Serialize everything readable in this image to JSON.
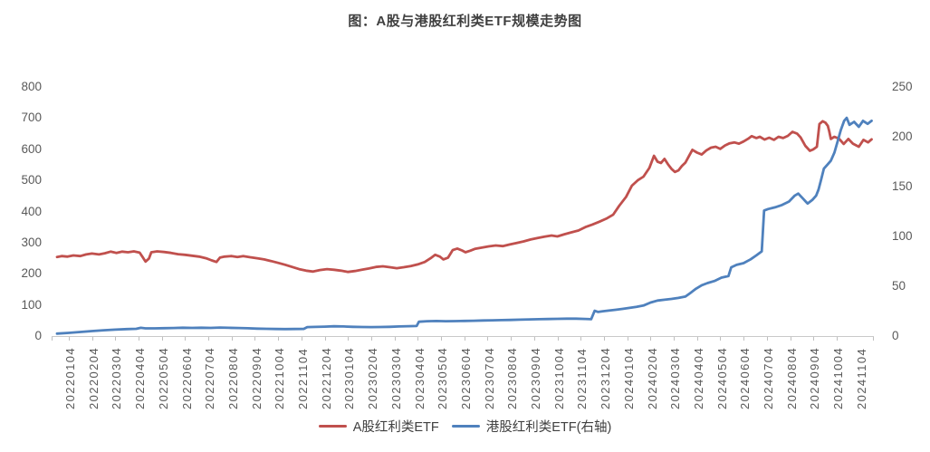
{
  "chart_data": {
    "type": "line",
    "title": "图：A股与港股红利类ETF规模走势图",
    "left_axis": {
      "min": 0,
      "max": 800,
      "step": 100,
      "tick_labels": [
        "0",
        "100",
        "200",
        "300",
        "400",
        "500",
        "600",
        "700",
        "800"
      ]
    },
    "right_axis": {
      "min": 0,
      "max": 250,
      "step": 50,
      "tick_labels": [
        "0",
        "50",
        "100",
        "150",
        "200",
        "250"
      ]
    },
    "x_tick_labels": [
      "20220104",
      "20220204",
      "20220304",
      "20220404",
      "20220504",
      "20220604",
      "20220704",
      "20220804",
      "20220904",
      "20221004",
      "20221104",
      "20221204",
      "20230104",
      "20230204",
      "20230304",
      "20230404",
      "20230504",
      "20230604",
      "20230704",
      "20230804",
      "20230904",
      "20231004",
      "20231104",
      "20231204",
      "20240104",
      "20240204",
      "20240304",
      "20240404",
      "20240504",
      "20240604",
      "20240704",
      "20240804",
      "20240904",
      "20241004",
      "20241104"
    ],
    "x_unit": "months since 2022-01-04",
    "x_range": [
      0,
      35
    ],
    "grid": "off",
    "legend_position": "bottom-center",
    "series": [
      {
        "name": "A股红利类ETF",
        "axis": "left",
        "color": "#c0504d",
        "points": [
          [
            0,
            254
          ],
          [
            0.2,
            257
          ],
          [
            0.45,
            255
          ],
          [
            0.7,
            259
          ],
          [
            1,
            257
          ],
          [
            1.25,
            262
          ],
          [
            1.5,
            265
          ],
          [
            1.8,
            262
          ],
          [
            2.05,
            266
          ],
          [
            2.3,
            271
          ],
          [
            2.55,
            267
          ],
          [
            2.8,
            271
          ],
          [
            3.05,
            269
          ],
          [
            3.3,
            272
          ],
          [
            3.55,
            268
          ],
          [
            3.7,
            251
          ],
          [
            3.8,
            239
          ],
          [
            3.95,
            249
          ],
          [
            4.05,
            269
          ],
          [
            4.3,
            272
          ],
          [
            4.6,
            270
          ],
          [
            4.9,
            267
          ],
          [
            5.2,
            263
          ],
          [
            5.5,
            261
          ],
          [
            5.8,
            258
          ],
          [
            6.1,
            255
          ],
          [
            6.4,
            250
          ],
          [
            6.65,
            243
          ],
          [
            6.85,
            238
          ],
          [
            7,
            252
          ],
          [
            7.2,
            255
          ],
          [
            7.5,
            257
          ],
          [
            7.75,
            254
          ],
          [
            8,
            257
          ],
          [
            8.3,
            253
          ],
          [
            8.6,
            250
          ],
          [
            8.9,
            246
          ],
          [
            9.2,
            241
          ],
          [
            9.5,
            235
          ],
          [
            9.8,
            229
          ],
          [
            10.1,
            222
          ],
          [
            10.4,
            215
          ],
          [
            10.7,
            210
          ],
          [
            11,
            207
          ],
          [
            11.3,
            212
          ],
          [
            11.6,
            215
          ],
          [
            11.9,
            213
          ],
          [
            12.2,
            210
          ],
          [
            12.5,
            206
          ],
          [
            12.8,
            209
          ],
          [
            13.1,
            213
          ],
          [
            13.4,
            217
          ],
          [
            13.7,
            222
          ],
          [
            14,
            224
          ],
          [
            14.3,
            221
          ],
          [
            14.6,
            218
          ],
          [
            14.9,
            221
          ],
          [
            15.2,
            225
          ],
          [
            15.5,
            230
          ],
          [
            15.8,
            238
          ],
          [
            16.05,
            250
          ],
          [
            16.25,
            261
          ],
          [
            16.45,
            255
          ],
          [
            16.6,
            246
          ],
          [
            16.8,
            252
          ],
          [
            17,
            276
          ],
          [
            17.2,
            281
          ],
          [
            17.4,
            275
          ],
          [
            17.55,
            269
          ],
          [
            17.75,
            274
          ],
          [
            17.95,
            280
          ],
          [
            18.25,
            284
          ],
          [
            18.55,
            288
          ],
          [
            18.85,
            291
          ],
          [
            19.15,
            289
          ],
          [
            19.45,
            294
          ],
          [
            19.75,
            299
          ],
          [
            20.05,
            304
          ],
          [
            20.35,
            310
          ],
          [
            20.65,
            315
          ],
          [
            20.95,
            319
          ],
          [
            21.25,
            323
          ],
          [
            21.5,
            320
          ],
          [
            21.8,
            327
          ],
          [
            22.1,
            333
          ],
          [
            22.4,
            339
          ],
          [
            22.7,
            350
          ],
          [
            23,
            358
          ],
          [
            23.3,
            367
          ],
          [
            23.6,
            377
          ],
          [
            23.9,
            390
          ],
          [
            24.15,
            418
          ],
          [
            24.45,
            447
          ],
          [
            24.7,
            483
          ],
          [
            24.95,
            500
          ],
          [
            25.2,
            512
          ],
          [
            25.45,
            540
          ],
          [
            25.65,
            579
          ],
          [
            25.8,
            560
          ],
          [
            25.95,
            556
          ],
          [
            26.1,
            569
          ],
          [
            26.25,
            552
          ],
          [
            26.4,
            537
          ],
          [
            26.55,
            527
          ],
          [
            26.7,
            532
          ],
          [
            26.85,
            546
          ],
          [
            27,
            557
          ],
          [
            27.15,
            578
          ],
          [
            27.3,
            598
          ],
          [
            27.5,
            589
          ],
          [
            27.7,
            583
          ],
          [
            27.9,
            596
          ],
          [
            28.1,
            605
          ],
          [
            28.3,
            608
          ],
          [
            28.5,
            601
          ],
          [
            28.7,
            612
          ],
          [
            28.9,
            619
          ],
          [
            29.1,
            622
          ],
          [
            29.3,
            618
          ],
          [
            29.5,
            625
          ],
          [
            29.7,
            634
          ],
          [
            29.85,
            642
          ],
          [
            30.05,
            636
          ],
          [
            30.2,
            640
          ],
          [
            30.4,
            631
          ],
          [
            30.6,
            637
          ],
          [
            30.8,
            630
          ],
          [
            31,
            640
          ],
          [
            31.2,
            636
          ],
          [
            31.4,
            643
          ],
          [
            31.6,
            656
          ],
          [
            31.8,
            650
          ],
          [
            31.95,
            638
          ],
          [
            32.15,
            611
          ],
          [
            32.35,
            595
          ],
          [
            32.5,
            600
          ],
          [
            32.65,
            608
          ],
          [
            32.76,
            681
          ],
          [
            32.9,
            690
          ],
          [
            33.02,
            685
          ],
          [
            33.12,
            675
          ],
          [
            33.18,
            658
          ],
          [
            33.25,
            633
          ],
          [
            33.4,
            640
          ],
          [
            33.6,
            634
          ],
          [
            33.8,
            617
          ],
          [
            34,
            633
          ],
          [
            34.2,
            618
          ],
          [
            34.45,
            608
          ],
          [
            34.65,
            630
          ],
          [
            34.85,
            622
          ],
          [
            35,
            632
          ]
        ]
      },
      {
        "name": "港股红利类ETF(右轴)",
        "axis": "right",
        "color": "#4f81bd",
        "points": [
          [
            0,
            2.5
          ],
          [
            0.5,
            3.2
          ],
          [
            1,
            4.1
          ],
          [
            1.5,
            5
          ],
          [
            2,
            5.8
          ],
          [
            2.5,
            6.5
          ],
          [
            3,
            7
          ],
          [
            3.4,
            7.3
          ],
          [
            3.6,
            8.3
          ],
          [
            3.8,
            7.7
          ],
          [
            4.2,
            7.7
          ],
          [
            4.6,
            7.9
          ],
          [
            5,
            8.1
          ],
          [
            5.4,
            8.4
          ],
          [
            5.8,
            8.2
          ],
          [
            6.2,
            8.4
          ],
          [
            6.6,
            8.2
          ],
          [
            7,
            8.5
          ],
          [
            7.4,
            8.3
          ],
          [
            7.8,
            8.1
          ],
          [
            8.2,
            7.8
          ],
          [
            8.6,
            7.5
          ],
          [
            9,
            7.3
          ],
          [
            9.4,
            7.1
          ],
          [
            9.8,
            7
          ],
          [
            10.2,
            7.1
          ],
          [
            10.6,
            7.2
          ],
          [
            10.75,
            9
          ],
          [
            11.1,
            9.2
          ],
          [
            11.5,
            9.5
          ],
          [
            11.9,
            9.8
          ],
          [
            12.3,
            9.6
          ],
          [
            12.7,
            9.3
          ],
          [
            13.1,
            9.1
          ],
          [
            13.5,
            9
          ],
          [
            13.9,
            9.1
          ],
          [
            14.3,
            9.3
          ],
          [
            14.7,
            9.6
          ],
          [
            15.1,
            9.9
          ],
          [
            15.45,
            10.1
          ],
          [
            15.55,
            14.4
          ],
          [
            15.9,
            14.9
          ],
          [
            16.3,
            15.1
          ],
          [
            16.7,
            14.9
          ],
          [
            17.1,
            15
          ],
          [
            17.5,
            15.2
          ],
          [
            17.9,
            15.4
          ],
          [
            18.3,
            15.6
          ],
          [
            18.7,
            15.8
          ],
          [
            19.1,
            16
          ],
          [
            19.5,
            16.2
          ],
          [
            19.9,
            16.5
          ],
          [
            20.3,
            16.7
          ],
          [
            20.7,
            16.9
          ],
          [
            21.1,
            17.1
          ],
          [
            21.5,
            17.3
          ],
          [
            21.9,
            17.5
          ],
          [
            22.3,
            17.5
          ],
          [
            22.7,
            17.2
          ],
          [
            22.95,
            16.9
          ],
          [
            23.1,
            25.4
          ],
          [
            23.25,
            24.2
          ],
          [
            23.45,
            24.9
          ],
          [
            23.7,
            25.5
          ],
          [
            24,
            26.4
          ],
          [
            24.3,
            27.3
          ],
          [
            24.6,
            28.3
          ],
          [
            24.9,
            29.4
          ],
          [
            25.2,
            30.6
          ],
          [
            25.5,
            33.6
          ],
          [
            25.8,
            35.6
          ],
          [
            26.1,
            36.5
          ],
          [
            26.4,
            37.3
          ],
          [
            26.7,
            38.3
          ],
          [
            27,
            39.6
          ],
          [
            27.2,
            43
          ],
          [
            27.45,
            47.5
          ],
          [
            27.7,
            51
          ],
          [
            27.95,
            53.2
          ],
          [
            28.25,
            55.3
          ],
          [
            28.55,
            58.6
          ],
          [
            28.85,
            60.2
          ],
          [
            28.97,
            69
          ],
          [
            29.2,
            71.5
          ],
          [
            29.5,
            73.2
          ],
          [
            29.8,
            77
          ],
          [
            30.05,
            81
          ],
          [
            30.28,
            85
          ],
          [
            30.38,
            126
          ],
          [
            30.55,
            127.5
          ],
          [
            30.85,
            129.2
          ],
          [
            31.15,
            131.5
          ],
          [
            31.45,
            135
          ],
          [
            31.7,
            141
          ],
          [
            31.85,
            143
          ],
          [
            32.05,
            138
          ],
          [
            32.25,
            133
          ],
          [
            32.45,
            136.5
          ],
          [
            32.62,
            141
          ],
          [
            32.72,
            147
          ],
          [
            32.82,
            156
          ],
          [
            32.95,
            168
          ],
          [
            33.1,
            172
          ],
          [
            33.25,
            176
          ],
          [
            33.4,
            184
          ],
          [
            33.55,
            196
          ],
          [
            33.68,
            207
          ],
          [
            33.82,
            216
          ],
          [
            33.93,
            219
          ],
          [
            34.05,
            212
          ],
          [
            34.25,
            215
          ],
          [
            34.45,
            210
          ],
          [
            34.63,
            216
          ],
          [
            34.83,
            213
          ],
          [
            35,
            216
          ]
        ]
      }
    ]
  },
  "colors": {
    "title_text": "#3f3f3f",
    "axis_text": "#595959",
    "axis_line": "#c9c9c9",
    "background": "#ffffff"
  }
}
